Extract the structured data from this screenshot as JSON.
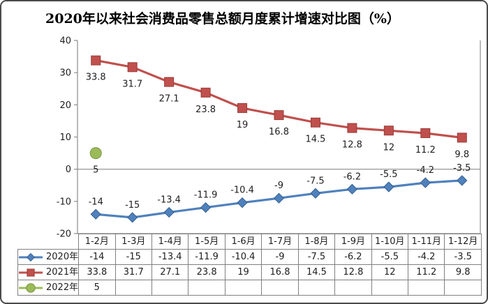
{
  "chart_data": {
    "type": "line",
    "title": "2020年以来社会消费品零售总额月度累计增速对比图（%）",
    "categories": [
      "1-2月",
      "1-3月",
      "1-4月",
      "1-5月",
      "1-6月",
      "1-7月",
      "1-8月",
      "1-9月",
      "1-10月",
      "1-11月",
      "1-12月"
    ],
    "series": [
      {
        "name": "2020年",
        "marker": "diamond",
        "color": "#4F81BD",
        "border": "#35608F",
        "label_side": "above",
        "values": [
          -14,
          -15,
          -13.4,
          -11.9,
          -10.4,
          -9,
          -7.5,
          -6.2,
          -5.5,
          -4.2,
          -3.5
        ]
      },
      {
        "name": "2021年",
        "marker": "square",
        "color": "#C0504D",
        "border": "#9A3A37",
        "label_side": "below",
        "values": [
          33.8,
          31.7,
          27.1,
          23.8,
          19,
          16.8,
          14.5,
          12.8,
          12,
          11.2,
          9.8
        ]
      },
      {
        "name": "2022年",
        "marker": "circle",
        "color": "#9BBB59",
        "border": "#7A9440",
        "label_side": "below",
        "values": [
          5,
          null,
          null,
          null,
          null,
          null,
          null,
          null,
          null,
          null,
          null
        ]
      }
    ],
    "y_axis": {
      "min": -20,
      "max": 40,
      "step": 10
    },
    "xlabel": "",
    "ylabel": "",
    "grid": false,
    "data_labels": true,
    "legend_position": "data-table-left"
  },
  "colors": {
    "axis": "#8C8C8C",
    "table_border": "#808080",
    "text": "#202020",
    "frame": "#4a4a4a",
    "background": "#FFFFFF"
  }
}
